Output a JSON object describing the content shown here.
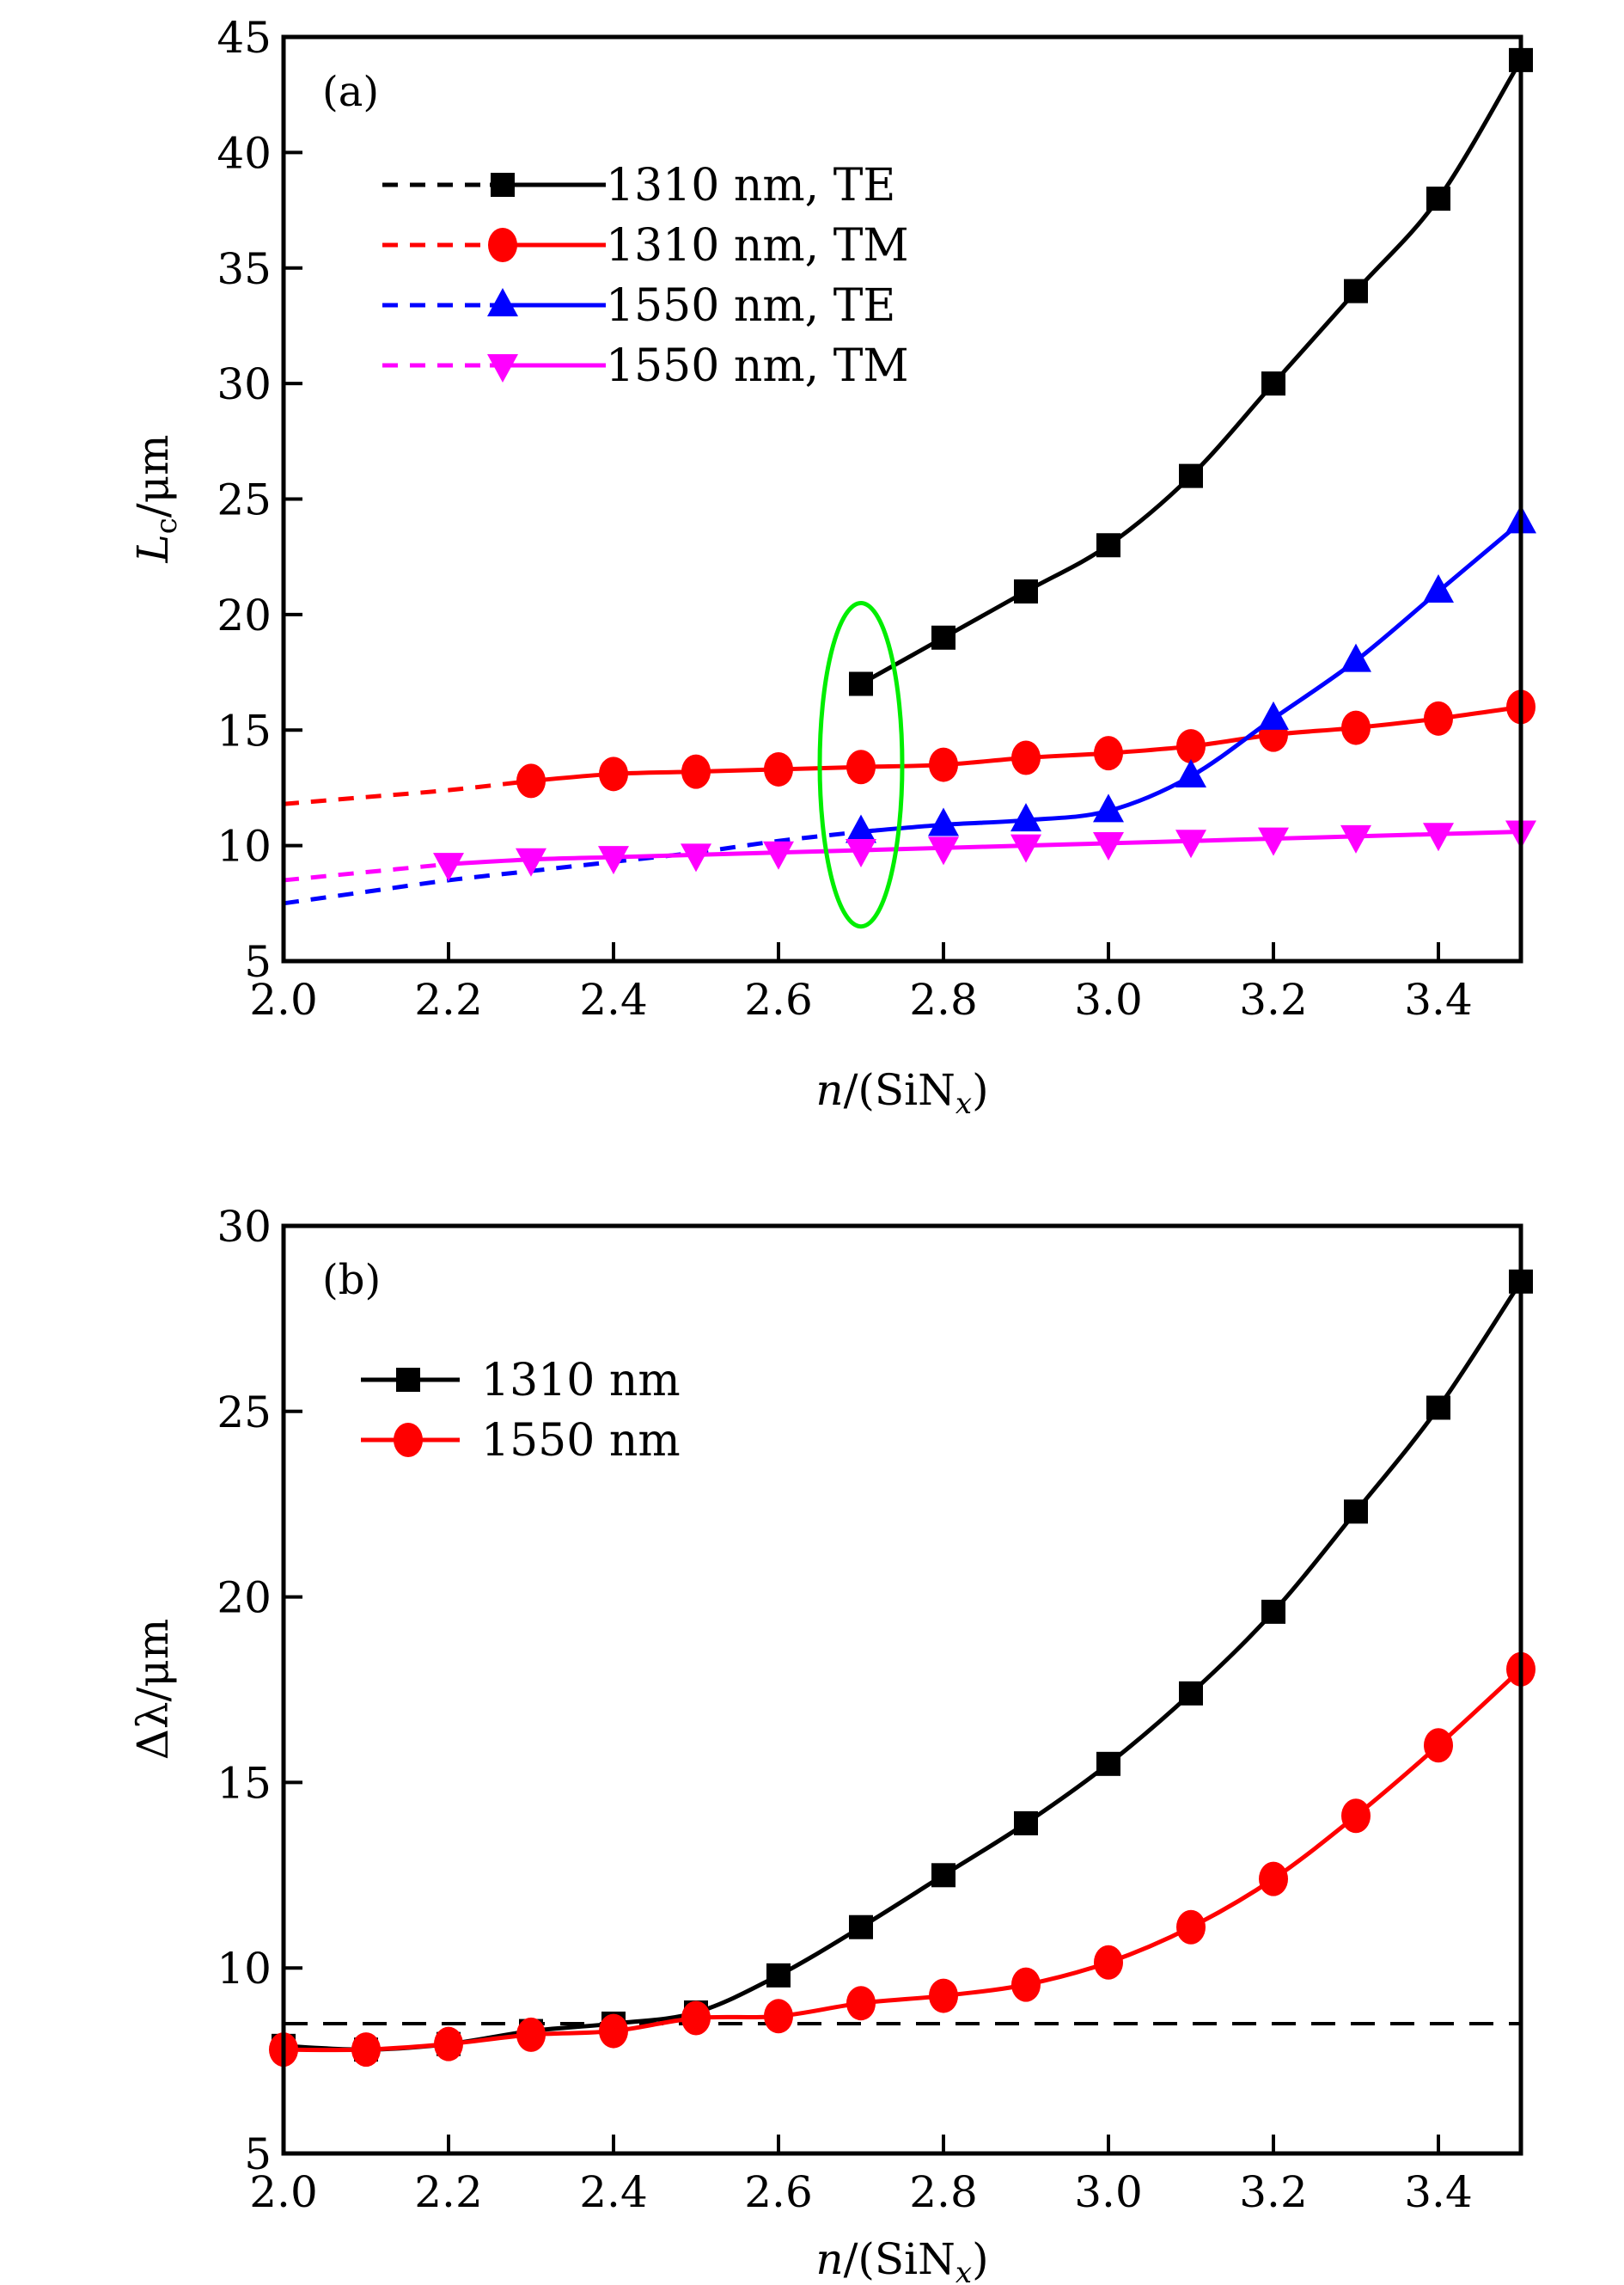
{
  "chart_data": [
    {
      "type": "line",
      "panel_label": "(a)",
      "xlabel": "n/(SiN_x)",
      "xlabel_parts": {
        "var": "n",
        "sep": "/(SiN",
        "sub": "x",
        "close": ")"
      },
      "ylabel": "L_c/μm",
      "ylabel_parts": {
        "var": "L",
        "sub": "c",
        "unit": "/μm"
      },
      "xlim": [
        2.0,
        3.5
      ],
      "ylim": [
        5,
        45
      ],
      "xticks": [
        2.0,
        2.2,
        2.4,
        2.6,
        2.8,
        3.0,
        3.2,
        3.4
      ],
      "xtick_labels": [
        "2.0",
        "2.2",
        "2.4",
        "2.6",
        "2.8",
        "3.0",
        "3.2",
        "3.4"
      ],
      "yticks": [
        5,
        10,
        15,
        20,
        25,
        30,
        35,
        40,
        45
      ],
      "ytick_labels": [
        "5",
        "10",
        "15",
        "20",
        "25",
        "30",
        "35",
        "40",
        "45"
      ],
      "grid": false,
      "legend_position": "top-left",
      "series": [
        {
          "name": "1310 nm, TE",
          "color": "#000000",
          "marker": "square",
          "x": [
            2.7,
            2.8,
            2.9,
            3.0,
            3.1,
            3.2,
            3.3,
            3.4,
            3.5
          ],
          "y": [
            17.0,
            19.0,
            21.0,
            23.0,
            26.0,
            30.0,
            34.0,
            38.0,
            44.0
          ],
          "dashed_extension": {
            "x": [],
            "y": []
          }
        },
        {
          "name": "1310 nm, TM",
          "color": "#ff0000",
          "marker": "circle",
          "x": [
            2.3,
            2.4,
            2.5,
            2.6,
            2.7,
            2.8,
            2.9,
            3.0,
            3.1,
            3.2,
            3.3,
            3.4,
            3.5
          ],
          "y": [
            12.8,
            13.1,
            13.2,
            13.3,
            13.4,
            13.5,
            13.8,
            14.0,
            14.3,
            14.8,
            15.1,
            15.5,
            16.0
          ],
          "dashed_extension": {
            "x": [
              2.0,
              2.1,
              2.2,
              2.3
            ],
            "y": [
              11.8,
              12.1,
              12.4,
              12.8
            ]
          }
        },
        {
          "name": "1550 nm, TE",
          "color": "#0000ff",
          "marker": "triangle-up",
          "x": [
            2.7,
            2.8,
            2.9,
            3.0,
            3.1,
            3.2,
            3.3,
            3.4,
            3.5
          ],
          "y": [
            10.6,
            10.9,
            11.1,
            11.5,
            13.0,
            15.5,
            18.0,
            21.0,
            24.0
          ],
          "dashed_extension": {
            "x": [
              2.0,
              2.1,
              2.2,
              2.3,
              2.4,
              2.5,
              2.6,
              2.7
            ],
            "y": [
              7.5,
              8.0,
              8.5,
              8.9,
              9.3,
              9.7,
              10.2,
              10.6
            ]
          }
        },
        {
          "name": "1550 nm, TM",
          "color": "#ff00ff",
          "marker": "triangle-down",
          "x": [
            2.2,
            2.3,
            2.4,
            2.5,
            2.6,
            2.7,
            2.8,
            2.9,
            3.0,
            3.1,
            3.2,
            3.3,
            3.4,
            3.5
          ],
          "y": [
            9.2,
            9.4,
            9.5,
            9.6,
            9.7,
            9.8,
            9.9,
            10.0,
            10.1,
            10.2,
            10.3,
            10.4,
            10.5,
            10.6
          ],
          "dashed_extension": {
            "x": [
              2.0,
              2.1,
              2.2
            ],
            "y": [
              8.5,
              8.85,
              9.2
            ]
          }
        }
      ],
      "annotations": [
        {
          "type": "ellipse",
          "color": "#00ee00",
          "center": [
            2.7,
            13.5
          ],
          "x_halfwidth": 0.05,
          "y_halfheight": 7.0,
          "note": "highlight at n=2.7"
        }
      ]
    },
    {
      "type": "line",
      "panel_label": "(b)",
      "xlabel": "n/(SiN_x)",
      "xlabel_parts": {
        "var": "n",
        "sep": "/(SiN",
        "sub": "x",
        "close": ")"
      },
      "ylabel": "Δλ/μm",
      "ylabel_parts": {
        "var": "Δλ",
        "sub": "",
        "unit": "/μm"
      },
      "xlim": [
        2.0,
        3.5
      ],
      "ylim": [
        5,
        30
      ],
      "xticks": [
        2.0,
        2.2,
        2.4,
        2.6,
        2.8,
        3.0,
        3.2,
        3.4
      ],
      "xtick_labels": [
        "2.0",
        "2.2",
        "2.4",
        "2.6",
        "2.8",
        "3.0",
        "3.2",
        "3.4"
      ],
      "yticks": [
        5,
        10,
        15,
        20,
        25,
        30
      ],
      "ytick_labels": [
        "5",
        "10",
        "15",
        "20",
        "25",
        "30"
      ],
      "grid": false,
      "legend_position": "top-left",
      "series": [
        {
          "name": "1310 nm",
          "color": "#000000",
          "marker": "square",
          "x": [
            2.0,
            2.1,
            2.2,
            2.3,
            2.4,
            2.5,
            2.6,
            2.7,
            2.8,
            2.9,
            3.0,
            3.1,
            3.2,
            3.3,
            3.4,
            3.5
          ],
          "y": [
            7.9,
            7.8,
            7.95,
            8.3,
            8.5,
            8.8,
            9.8,
            11.1,
            12.5,
            13.9,
            15.5,
            17.4,
            19.6,
            22.3,
            25.1,
            28.5
          ]
        },
        {
          "name": "1550 nm",
          "color": "#ff0000",
          "marker": "circle",
          "x": [
            2.0,
            2.1,
            2.2,
            2.3,
            2.4,
            2.5,
            2.6,
            2.7,
            2.8,
            2.9,
            3.0,
            3.1,
            3.2,
            3.3,
            3.4,
            3.5
          ],
          "y": [
            7.8,
            7.8,
            7.95,
            8.2,
            8.3,
            8.65,
            8.7,
            9.05,
            9.25,
            9.55,
            10.15,
            11.1,
            12.4,
            14.1,
            16.0,
            18.05
          ]
        }
      ],
      "reference_lines": [
        {
          "type": "horizontal",
          "y": 8.5,
          "style": "dashed",
          "color": "#000000"
        }
      ]
    }
  ]
}
